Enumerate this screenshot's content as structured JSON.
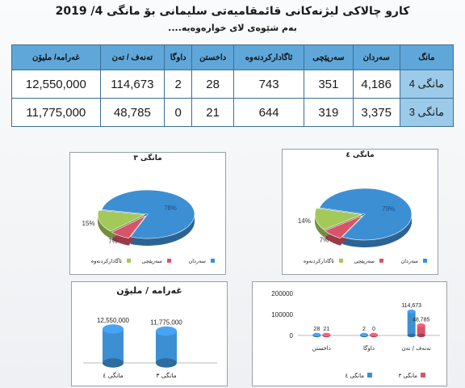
{
  "header": {
    "title": "كارو چالاكى ليژنەكانى قائمقاميەتى سليمانى بۆ مانگى  4/ 2019",
    "subtitle": "بەم شێوەی لای خوارەوەیە...."
  },
  "table": {
    "columns": [
      "مانگ",
      "سەردان",
      "سەرپێچی",
      "ئاگادارکردنەوە",
      "داخستن",
      "داوگا",
      "تەنەف / تەن",
      "غەرامە/ مليۆن"
    ],
    "rows": [
      {
        "label": "مانگی 4",
        "values": [
          "4,186",
          "351",
          "743",
          "28",
          "2",
          "114,673",
          "12,550,000"
        ]
      },
      {
        "label": "مانگی 3",
        "values": [
          "3,375",
          "319",
          "644",
          "21",
          "0",
          "48,785",
          "11,775,000"
        ]
      }
    ]
  },
  "colors": {
    "blue": "#3d8fd4",
    "red": "#d9546a",
    "green": "#a3c95a",
    "header": "#5fa7d9",
    "label_cell": "#9ccae9"
  },
  "chart_data": [
    {
      "type": "pie",
      "title": "مانگی ٣",
      "categories": [
        "سەردان",
        "سەرپێچی",
        "ئاگادارکردنەوە"
      ],
      "values": [
        78,
        7,
        15
      ],
      "labels": [
        "78%",
        "7%",
        "15%"
      ]
    },
    {
      "type": "pie",
      "title": "مانگی ٤",
      "categories": [
        "سەردان",
        "سەرپێچی",
        "ئاگادارکردنەوە"
      ],
      "values": [
        79,
        7,
        14
      ],
      "labels": [
        "79%",
        "7%",
        "14%"
      ]
    },
    {
      "type": "bar",
      "title": "غەرامە / مليۆن",
      "categories": [
        "مانگی ٤",
        "مانگی ٣"
      ],
      "values": [
        12550000,
        11775000
      ],
      "value_labels": [
        "12,550,000",
        "11,775,000"
      ]
    },
    {
      "type": "bar",
      "categories": [
        "داخستن",
        "داوگا",
        "تەنەف / تەن"
      ],
      "series": [
        {
          "name": "مانگی ٤",
          "values": [
            28,
            2,
            114673
          ],
          "value_labels": [
            "28",
            "2",
            "114,673"
          ]
        },
        {
          "name": "مانگی ٣",
          "values": [
            21,
            0,
            48785
          ],
          "value_labels": [
            "21",
            "0",
            "48,785"
          ]
        }
      ],
      "ylim": [
        0,
        200000
      ],
      "yticks": [
        "0",
        "100000",
        "200000"
      ]
    }
  ]
}
